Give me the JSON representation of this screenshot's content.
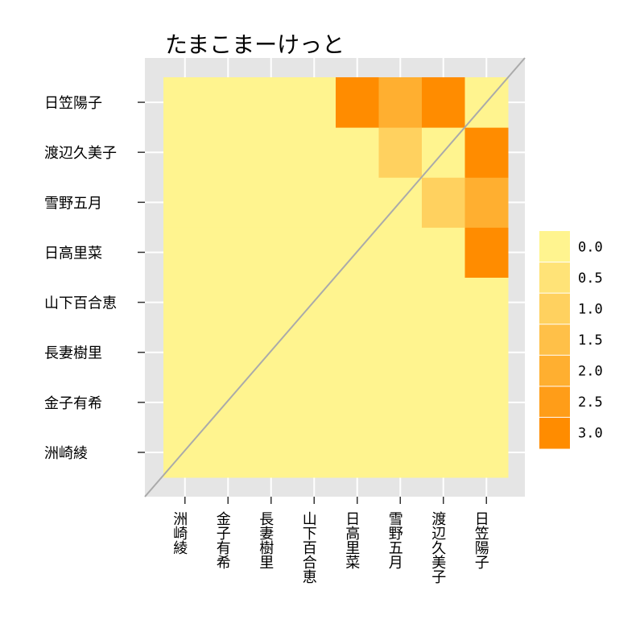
{
  "chart_data": {
    "type": "heatmap",
    "title": "たまこまーけっと",
    "subtitle": "",
    "xlabel": "",
    "ylabel": "",
    "categories": [
      "洲崎綾",
      "金子有希",
      "長妻樹里",
      "山下百合恵",
      "日高里菜",
      "雪野五月",
      "渡辺久美子",
      "日笠陽子"
    ],
    "values": [
      [
        0,
        0,
        0,
        0,
        0,
        0,
        0,
        0
      ],
      [
        0,
        0,
        0,
        0,
        0,
        0,
        0,
        0
      ],
      [
        0,
        0,
        0,
        0,
        0,
        0,
        0,
        0
      ],
      [
        0,
        0,
        0,
        0,
        0,
        0,
        0,
        0
      ],
      [
        0,
        0,
        0,
        0,
        0,
        0,
        0,
        3
      ],
      [
        0,
        0,
        0,
        0,
        0,
        0,
        1,
        2
      ],
      [
        0,
        0,
        0,
        0,
        0,
        1,
        0,
        3
      ],
      [
        0,
        0,
        0,
        0,
        3,
        2,
        3,
        0
      ]
    ],
    "color_scale": {
      "low_color": "#FFF48F",
      "high_color": "#FF8C00",
      "range": [
        0,
        3
      ]
    },
    "legend": {
      "position": "right",
      "items": [
        {
          "label": "0.0",
          "value": 0.0
        },
        {
          "label": "0.5",
          "value": 0.5
        },
        {
          "label": "1.0",
          "value": 1.0
        },
        {
          "label": "1.5",
          "value": 1.5
        },
        {
          "label": "2.0",
          "value": 2.0
        },
        {
          "label": "2.5",
          "value": 2.5
        },
        {
          "label": "3.0",
          "value": 3.0
        }
      ]
    },
    "grid": true,
    "diagonal_line": true,
    "panel_background": "#E5E5E5",
    "grid_color": "#FFFFFF",
    "diagonal_color": "#AAAAAA"
  }
}
